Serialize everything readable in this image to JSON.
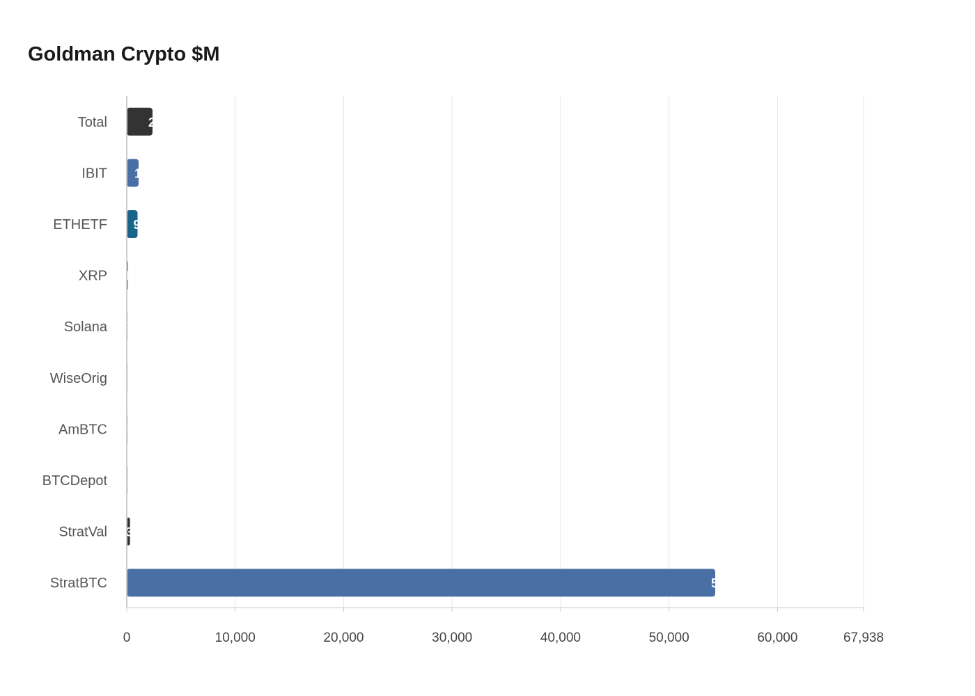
{
  "chart_data": {
    "type": "bar",
    "orientation": "horizontal",
    "title": "Goldman Crypto $M",
    "xlabel": "",
    "ylabel": "",
    "categories": [
      "Total",
      "IBIT",
      "ETHETF",
      "XRP",
      "Solana",
      "WiseOrig",
      "AmBTC",
      "BTCDepot",
      "StratVal",
      "StratBTC"
    ],
    "values": [
      2376,
      1092,
      995,
      130,
      90,
      60,
      40,
      40,
      300,
      54260
    ],
    "colors": [
      "#333333",
      "#4a6fa5",
      "#1a6489",
      "#7d8aa3",
      "#b5b5b5",
      "#9a9a9a",
      "#4a6fa5",
      "#1a6489",
      "#333333",
      "#4a6fa5"
    ],
    "xlim": [
      0,
      67938
    ],
    "xticks": [
      "0",
      "10,000",
      "20,000",
      "30,000",
      "40,000",
      "50,000",
      "60,000",
      "67,938"
    ],
    "xtick_values": [
      0,
      10000,
      20000,
      30000,
      40000,
      50000,
      60000,
      67938
    ],
    "grid": true,
    "legend": "none"
  }
}
